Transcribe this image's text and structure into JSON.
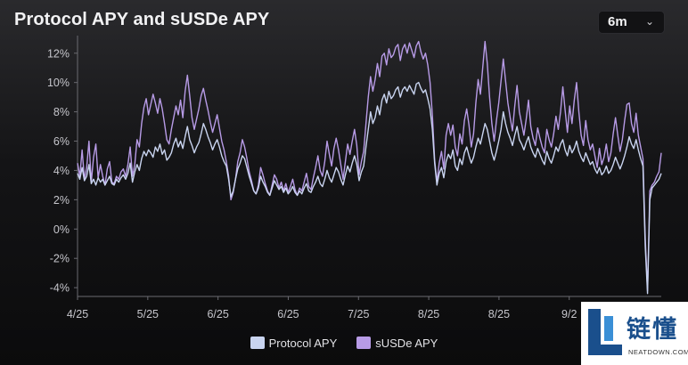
{
  "header": {
    "title": "Protocol APY and sUSDe APY",
    "range": "6m",
    "range_chevron_icon": "chevron-down-icon"
  },
  "chart_data": {
    "type": "line",
    "title": "Protocol APY and sUSDe APY",
    "xlabel": "",
    "ylabel": "",
    "ylim": [
      -4.6,
      13.2
    ],
    "yticks": [
      -4,
      -2,
      0,
      2,
      4,
      6,
      8,
      10,
      12
    ],
    "ytick_labels": [
      "-4%",
      "-2%",
      "0%",
      "2%",
      "4%",
      "6%",
      "8%",
      "10%",
      "12%"
    ],
    "xticks": [
      "4/25",
      "5/25",
      "6/25",
      "6/25",
      "7/25",
      "8/25",
      "8/25",
      "9/2"
    ],
    "xtick_positions": [
      0,
      29,
      58,
      87,
      116,
      145,
      174,
      203
    ],
    "xlim": [
      0,
      241
    ],
    "grid": false,
    "legend_position": "bottom",
    "series": [
      {
        "name": "Protocol APY",
        "color": "#c9d4f0",
        "values": [
          3.8,
          3.4,
          4.2,
          3.3,
          3.6,
          4.4,
          3.1,
          3.4,
          3.0,
          3.5,
          3.2,
          3.4,
          3.0,
          3.3,
          3.6,
          3.1,
          3.0,
          3.4,
          3.2,
          3.5,
          3.7,
          3.4,
          3.8,
          4.5,
          3.2,
          3.9,
          4.4,
          4.0,
          4.8,
          5.3,
          5.0,
          5.4,
          5.2,
          4.9,
          5.6,
          5.3,
          5.8,
          5.1,
          5.4,
          4.7,
          4.9,
          5.2,
          5.8,
          6.2,
          5.6,
          6.0,
          5.5,
          6.3,
          7.0,
          6.1,
          5.7,
          5.2,
          5.6,
          5.9,
          6.5,
          7.2,
          6.8,
          6.3,
          5.9,
          5.4,
          5.8,
          6.1,
          5.6,
          5.0,
          4.6,
          4.3,
          3.4,
          2.2,
          2.6,
          3.4,
          4.1,
          4.5,
          5.0,
          4.8,
          4.2,
          3.6,
          3.1,
          2.6,
          2.4,
          2.8,
          3.6,
          3.2,
          2.9,
          2.5,
          2.3,
          2.8,
          3.3,
          3.0,
          2.7,
          2.9,
          2.5,
          2.8,
          2.4,
          2.6,
          2.9,
          2.5,
          2.3,
          2.6,
          2.4,
          2.8,
          3.1,
          2.6,
          2.5,
          2.9,
          3.2,
          3.6,
          3.1,
          2.9,
          3.4,
          4.0,
          3.5,
          3.2,
          3.7,
          4.2,
          3.9,
          3.4,
          3.0,
          3.7,
          4.3,
          3.9,
          4.5,
          5.0,
          4.4,
          3.3,
          3.9,
          4.3,
          5.6,
          6.8,
          8.0,
          7.2,
          7.6,
          8.4,
          7.8,
          8.8,
          9.2,
          8.6,
          9.4,
          8.9,
          9.1,
          9.5,
          9.7,
          9.0,
          9.5,
          9.7,
          9.4,
          9.8,
          9.5,
          9.2,
          9.9,
          10.0,
          9.6,
          9.3,
          9.5,
          8.9,
          8.2,
          6.8,
          4.5,
          3.0,
          3.8,
          4.2,
          3.5,
          4.6,
          5.1,
          4.8,
          5.4,
          4.3,
          4.0,
          4.8,
          4.4,
          5.2,
          5.6,
          5.0,
          4.5,
          4.9,
          5.6,
          6.2,
          5.8,
          6.5,
          7.2,
          6.8,
          6.0,
          5.2,
          4.7,
          5.3,
          6.0,
          6.8,
          8.0,
          7.2,
          6.6,
          6.2,
          5.7,
          6.4,
          7.0,
          6.1,
          5.8,
          5.4,
          5.9,
          6.3,
          5.6,
          5.2,
          4.9,
          5.5,
          5.1,
          4.7,
          4.4,
          5.3,
          4.8,
          4.5,
          5.0,
          5.6,
          5.3,
          5.8,
          6.1,
          5.4,
          5.0,
          5.7,
          5.2,
          5.5,
          6.0,
          5.3,
          4.9,
          4.6,
          5.2,
          4.8,
          4.4,
          4.6,
          4.1,
          3.8,
          4.2,
          3.7,
          3.9,
          4.3,
          3.8,
          4.0,
          4.4,
          4.9,
          4.5,
          4.1,
          4.5,
          5.0,
          5.6,
          6.3,
          5.8,
          5.5,
          6.1,
          5.4,
          4.8,
          4.3,
          -1.2,
          -4.4,
          2.0,
          2.8,
          3.0,
          3.2,
          3.4,
          3.8
        ]
      },
      {
        "name": "sUSDe APY",
        "color": "#b79be6",
        "values": [
          4.5,
          3.6,
          5.4,
          3.4,
          4.2,
          6.0,
          3.2,
          4.9,
          5.8,
          3.5,
          4.4,
          3.6,
          3.0,
          4.1,
          4.6,
          3.2,
          3.1,
          3.6,
          3.4,
          3.9,
          4.1,
          3.6,
          4.4,
          5.6,
          3.6,
          4.4,
          6.1,
          5.6,
          7.2,
          8.3,
          8.9,
          7.8,
          8.5,
          9.2,
          8.6,
          7.9,
          8.9,
          8.2,
          7.2,
          6.1,
          5.8,
          6.8,
          7.6,
          8.4,
          7.8,
          8.8,
          7.6,
          9.4,
          10.5,
          9.1,
          7.6,
          6.8,
          7.5,
          8.2,
          9.1,
          9.6,
          8.8,
          8.1,
          7.3,
          6.6,
          7.2,
          7.8,
          6.9,
          6.0,
          5.4,
          4.6,
          3.6,
          2.0,
          2.5,
          3.4,
          4.6,
          5.2,
          6.1,
          5.6,
          4.8,
          3.9,
          3.3,
          2.6,
          2.4,
          3.0,
          4.2,
          3.7,
          3.1,
          2.6,
          2.3,
          3.0,
          3.7,
          3.4,
          2.8,
          3.2,
          2.6,
          3.1,
          2.5,
          2.9,
          3.4,
          2.7,
          2.3,
          2.8,
          2.6,
          3.2,
          3.8,
          2.9,
          2.7,
          3.5,
          4.2,
          5.0,
          4.0,
          3.6,
          4.6,
          6.0,
          5.1,
          4.3,
          5.5,
          6.2,
          5.4,
          4.4,
          3.4,
          4.6,
          5.8,
          5.1,
          6.0,
          6.8,
          5.7,
          3.7,
          4.6,
          5.3,
          7.2,
          9.0,
          10.4,
          9.4,
          10.2,
          11.3,
          10.4,
          11.8,
          12.0,
          11.2,
          12.3,
          11.7,
          11.9,
          12.4,
          12.6,
          11.5,
          12.3,
          12.6,
          12.0,
          12.7,
          12.2,
          11.7,
          12.5,
          12.8,
          12.1,
          11.6,
          12.0,
          11.2,
          10.0,
          7.8,
          4.7,
          3.2,
          4.5,
          5.3,
          4.1,
          6.4,
          7.2,
          6.4,
          7.1,
          5.6,
          5.0,
          6.5,
          5.8,
          7.4,
          8.2,
          7.1,
          5.6,
          6.5,
          8.6,
          10.2,
          9.2,
          11.0,
          12.8,
          11.3,
          9.0,
          7.2,
          6.0,
          7.4,
          8.6,
          10.1,
          11.6,
          10.1,
          8.6,
          7.6,
          6.7,
          8.4,
          9.8,
          8.0,
          7.2,
          6.4,
          7.5,
          8.8,
          7.0,
          6.2,
          5.7,
          6.9,
          6.2,
          5.6,
          5.2,
          6.8,
          6.1,
          5.6,
          6.5,
          7.7,
          6.8,
          8.0,
          9.7,
          8.1,
          6.6,
          8.4,
          7.2,
          8.8,
          10.0,
          8.0,
          6.4,
          5.7,
          7.4,
          6.1,
          5.4,
          5.8,
          5.0,
          4.2,
          5.5,
          4.4,
          4.9,
          5.8,
          4.6,
          5.2,
          6.5,
          7.6,
          6.4,
          5.3,
          6.1,
          7.4,
          8.5,
          8.6,
          7.2,
          6.6,
          7.9,
          6.4,
          5.6,
          4.8,
          -0.6,
          -4.2,
          2.6,
          3.0,
          3.2,
          3.6,
          3.9,
          5.2
        ]
      }
    ]
  },
  "legend": {
    "items": [
      {
        "label": "Protocol APY",
        "color": "#c9d4f0"
      },
      {
        "label": "sUSDe APY",
        "color": "#b79be6"
      }
    ]
  },
  "watermark": {
    "cn_text": "链懂",
    "en_text": "NEATDOWN.COM"
  }
}
